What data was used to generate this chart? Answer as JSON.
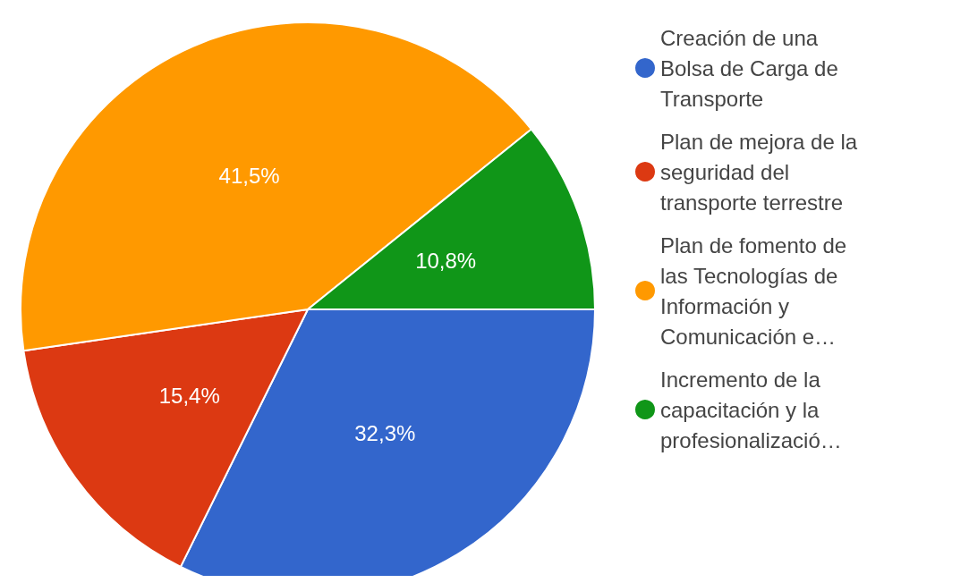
{
  "chart_data": {
    "type": "pie",
    "categories": [
      "Creación de una Bolsa de Carga de Transporte",
      "Plan de mejora de la seguridad del transporte terrestre",
      "Plan de fomento de las Tecnologías de Información y Comunicación e…",
      "Incremento de la capacitación y la profesionalizació…"
    ],
    "values": [
      32.3,
      15.4,
      41.5,
      10.8
    ],
    "colors": [
      "#3366cc",
      "#dc3912",
      "#ff9900",
      "#109618"
    ],
    "value_labels": [
      "32,3%",
      "15,4%",
      "41,5%",
      "10,8%"
    ],
    "legend": "right"
  }
}
